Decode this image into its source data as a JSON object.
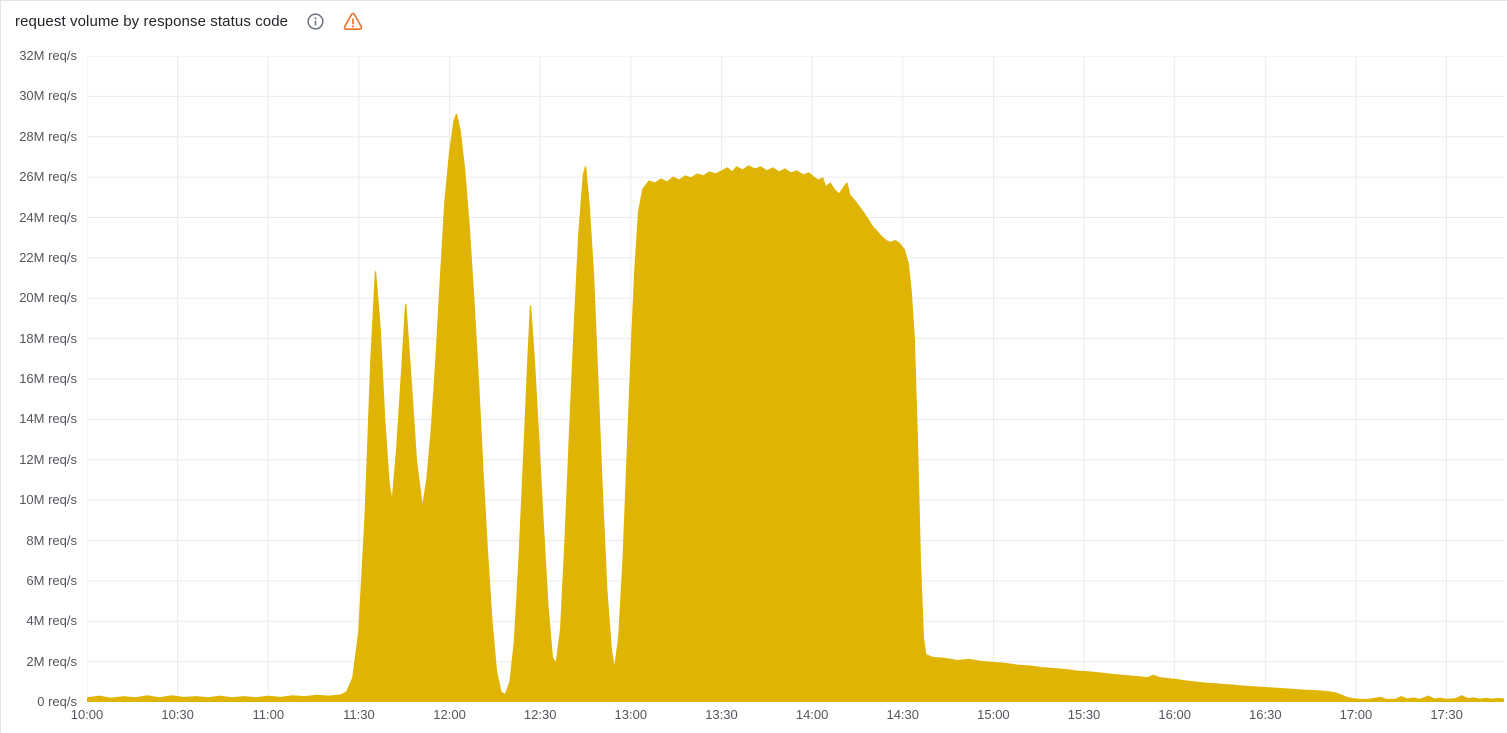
{
  "panel": {
    "title": "request volume by response status code",
    "icons": {
      "info": "info-icon",
      "warning": "warning-icon"
    }
  },
  "colors": {
    "background": "#ffffff",
    "panel_border": "#e2e4e7",
    "grid": "#eaebed",
    "axis_text": "#52565c",
    "title_text": "#1f2328",
    "series_fill": "#E0B404",
    "info_icon": "#6e7580",
    "warning_icon": "#e8702a"
  },
  "chart_data": {
    "type": "area",
    "title": "request volume by response status code",
    "legend": false,
    "grid": true,
    "x_axis": {
      "unit": "time of day",
      "range_minutes": [
        0,
        469
      ],
      "tick_minutes": [
        0,
        30,
        60,
        90,
        120,
        150,
        180,
        210,
        240,
        270,
        300,
        330,
        360,
        390,
        420,
        450
      ],
      "tick_labels": [
        "10:00",
        "10:30",
        "11:00",
        "11:30",
        "12:00",
        "12:30",
        "13:00",
        "13:30",
        "14:00",
        "14:30",
        "15:00",
        "15:30",
        "16:00",
        "16:30",
        "17:00",
        "17:30"
      ]
    },
    "y_axis": {
      "unit": "req/s",
      "range_millions": [
        0,
        32
      ],
      "tick_values_millions": [
        0,
        2,
        4,
        6,
        8,
        10,
        12,
        14,
        16,
        18,
        20,
        22,
        24,
        26,
        28,
        30,
        32
      ],
      "tick_labels": [
        "0 req/s",
        "2M req/s",
        "4M req/s",
        "6M req/s",
        "8M req/s",
        "10M req/s",
        "12M req/s",
        "14M req/s",
        "16M req/s",
        "18M req/s",
        "20M req/s",
        "22M req/s",
        "24M req/s",
        "26M req/s",
        "28M req/s",
        "30M req/s",
        "32M req/s"
      ]
    },
    "series": [
      {
        "color": "#E0B404",
        "points_minute_vs_million_reqs": [
          [
            0,
            0.2
          ],
          [
            4,
            0.28
          ],
          [
            8,
            0.18
          ],
          [
            12,
            0.26
          ],
          [
            16,
            0.2
          ],
          [
            20,
            0.3
          ],
          [
            24,
            0.2
          ],
          [
            28,
            0.3
          ],
          [
            32,
            0.22
          ],
          [
            36,
            0.26
          ],
          [
            40,
            0.2
          ],
          [
            44,
            0.28
          ],
          [
            48,
            0.2
          ],
          [
            52,
            0.26
          ],
          [
            56,
            0.2
          ],
          [
            60,
            0.28
          ],
          [
            64,
            0.22
          ],
          [
            68,
            0.3
          ],
          [
            72,
            0.26
          ],
          [
            76,
            0.32
          ],
          [
            80,
            0.28
          ],
          [
            84,
            0.34
          ],
          [
            86,
            0.5
          ],
          [
            88,
            1.2
          ],
          [
            90,
            3.5
          ],
          [
            92,
            9
          ],
          [
            94,
            17
          ],
          [
            95.5,
            21.3
          ],
          [
            97,
            18.5
          ],
          [
            98.5,
            14
          ],
          [
            100,
            10.8
          ],
          [
            101,
            9.9
          ],
          [
            102.5,
            12.5
          ],
          [
            104,
            16
          ],
          [
            105.5,
            19.7
          ],
          [
            107,
            16.5
          ],
          [
            109,
            12
          ],
          [
            111,
            9.6
          ],
          [
            112.5,
            11
          ],
          [
            114,
            13.5
          ],
          [
            115.5,
            17
          ],
          [
            117,
            21
          ],
          [
            118.5,
            24.8
          ],
          [
            120,
            27.2
          ],
          [
            121.5,
            28.8
          ],
          [
            122.3,
            29.1
          ],
          [
            123.5,
            28.3
          ],
          [
            125,
            26.3
          ],
          [
            126.5,
            23.5
          ],
          [
            128,
            20
          ],
          [
            129.5,
            16
          ],
          [
            131,
            11.5
          ],
          [
            132.5,
            7.5
          ],
          [
            134,
            4
          ],
          [
            135.5,
            1.5
          ],
          [
            137,
            0.5
          ],
          [
            138.5,
            0.35
          ],
          [
            140,
            1
          ],
          [
            141.5,
            3
          ],
          [
            143,
            7
          ],
          [
            144.5,
            12
          ],
          [
            145.8,
            16.5
          ],
          [
            146.8,
            19.6
          ],
          [
            148,
            17
          ],
          [
            149.5,
            13
          ],
          [
            151,
            8.8
          ],
          [
            152.5,
            4.8
          ],
          [
            154,
            2.2
          ],
          [
            155.3,
            1.9
          ],
          [
            156.8,
            3.6
          ],
          [
            158.3,
            8.2
          ],
          [
            159.8,
            13.6
          ],
          [
            161.3,
            18.6
          ],
          [
            162.8,
            23.2
          ],
          [
            164.3,
            26.1
          ],
          [
            165,
            26.5
          ],
          [
            166.2,
            24.6
          ],
          [
            167.6,
            21.2
          ],
          [
            169,
            16.2
          ],
          [
            170.5,
            10.6
          ],
          [
            172,
            5.6
          ],
          [
            173.5,
            2.6
          ],
          [
            174.6,
            1.6
          ],
          [
            176,
            3.2
          ],
          [
            177.5,
            7.2
          ],
          [
            179,
            13
          ],
          [
            180.2,
            17.5
          ],
          [
            181.3,
            21.3
          ],
          [
            182.6,
            24.3
          ],
          [
            184,
            25.4
          ],
          [
            186,
            25.8
          ],
          [
            188,
            25.7
          ],
          [
            190,
            25.9
          ],
          [
            192,
            25.75
          ],
          [
            194,
            26
          ],
          [
            196,
            25.85
          ],
          [
            198,
            26.05
          ],
          [
            200,
            25.95
          ],
          [
            202,
            26.15
          ],
          [
            204,
            26.05
          ],
          [
            206,
            26.25
          ],
          [
            208,
            26.15
          ],
          [
            210,
            26.3
          ],
          [
            212,
            26.45
          ],
          [
            213.5,
            26.25
          ],
          [
            215,
            26.5
          ],
          [
            217,
            26.35
          ],
          [
            219,
            26.55
          ],
          [
            221,
            26.4
          ],
          [
            223,
            26.5
          ],
          [
            225,
            26.3
          ],
          [
            227,
            26.45
          ],
          [
            229,
            26.25
          ],
          [
            231,
            26.4
          ],
          [
            233,
            26.2
          ],
          [
            235,
            26.3
          ],
          [
            237,
            26.1
          ],
          [
            239,
            26.2
          ],
          [
            240.5,
            26
          ],
          [
            242,
            25.85
          ],
          [
            243.5,
            25.95
          ],
          [
            244.5,
            25.5
          ],
          [
            246,
            25.7
          ],
          [
            247.5,
            25.35
          ],
          [
            249,
            25.15
          ],
          [
            250.5,
            25.5
          ],
          [
            251.5,
            25.7
          ],
          [
            252.5,
            25.1
          ],
          [
            254,
            24.85
          ],
          [
            255.5,
            24.55
          ],
          [
            257,
            24.25
          ],
          [
            258.5,
            23.9
          ],
          [
            260,
            23.55
          ],
          [
            261.5,
            23.3
          ],
          [
            263,
            23.05
          ],
          [
            264.5,
            22.85
          ],
          [
            266,
            22.75
          ],
          [
            267.5,
            22.85
          ],
          [
            269,
            22.7
          ],
          [
            270.5,
            22.4
          ],
          [
            271.8,
            21.7
          ],
          [
            272.8,
            20.3
          ],
          [
            273.8,
            18
          ],
          [
            274.8,
            13
          ],
          [
            275.8,
            7
          ],
          [
            276.8,
            3.2
          ],
          [
            277.6,
            2.35
          ],
          [
            280,
            2.2
          ],
          [
            284,
            2.15
          ],
          [
            288,
            2.05
          ],
          [
            292,
            2.1
          ],
          [
            296,
            2
          ],
          [
            300,
            1.95
          ],
          [
            304,
            1.9
          ],
          [
            308,
            1.82
          ],
          [
            312,
            1.78
          ],
          [
            316,
            1.7
          ],
          [
            320,
            1.65
          ],
          [
            324,
            1.6
          ],
          [
            328,
            1.52
          ],
          [
            332,
            1.48
          ],
          [
            336,
            1.42
          ],
          [
            340,
            1.35
          ],
          [
            344,
            1.3
          ],
          [
            348,
            1.25
          ],
          [
            351,
            1.2
          ],
          [
            353,
            1.32
          ],
          [
            355,
            1.2
          ],
          [
            358,
            1.15
          ],
          [
            361,
            1.1
          ],
          [
            364,
            1.03
          ],
          [
            367,
            0.98
          ],
          [
            370,
            0.93
          ],
          [
            373,
            0.9
          ],
          [
            376,
            0.86
          ],
          [
            379,
            0.83
          ],
          [
            382,
            0.79
          ],
          [
            385,
            0.76
          ],
          [
            388,
            0.73
          ],
          [
            391,
            0.7
          ],
          [
            394,
            0.67
          ],
          [
            397,
            0.64
          ],
          [
            400,
            0.61
          ],
          [
            403,
            0.58
          ],
          [
            406,
            0.56
          ],
          [
            409,
            0.53
          ],
          [
            411,
            0.5
          ],
          [
            413,
            0.45
          ],
          [
            415,
            0.35
          ],
          [
            417,
            0.22
          ],
          [
            419,
            0.16
          ],
          [
            421,
            0.13
          ],
          [
            424,
            0.12
          ],
          [
            426,
            0.17
          ],
          [
            428,
            0.22
          ],
          [
            430,
            0.13
          ],
          [
            433,
            0.12
          ],
          [
            435,
            0.26
          ],
          [
            437,
            0.14
          ],
          [
            439,
            0.2
          ],
          [
            441,
            0.12
          ],
          [
            444,
            0.28
          ],
          [
            446,
            0.14
          ],
          [
            448,
            0.18
          ],
          [
            450,
            0.12
          ],
          [
            453,
            0.16
          ],
          [
            455,
            0.3
          ],
          [
            457,
            0.16
          ],
          [
            459,
            0.2
          ],
          [
            461,
            0.13
          ],
          [
            463,
            0.18
          ],
          [
            465,
            0.13
          ],
          [
            467,
            0.17
          ],
          [
            469,
            0.14
          ]
        ]
      }
    ]
  }
}
